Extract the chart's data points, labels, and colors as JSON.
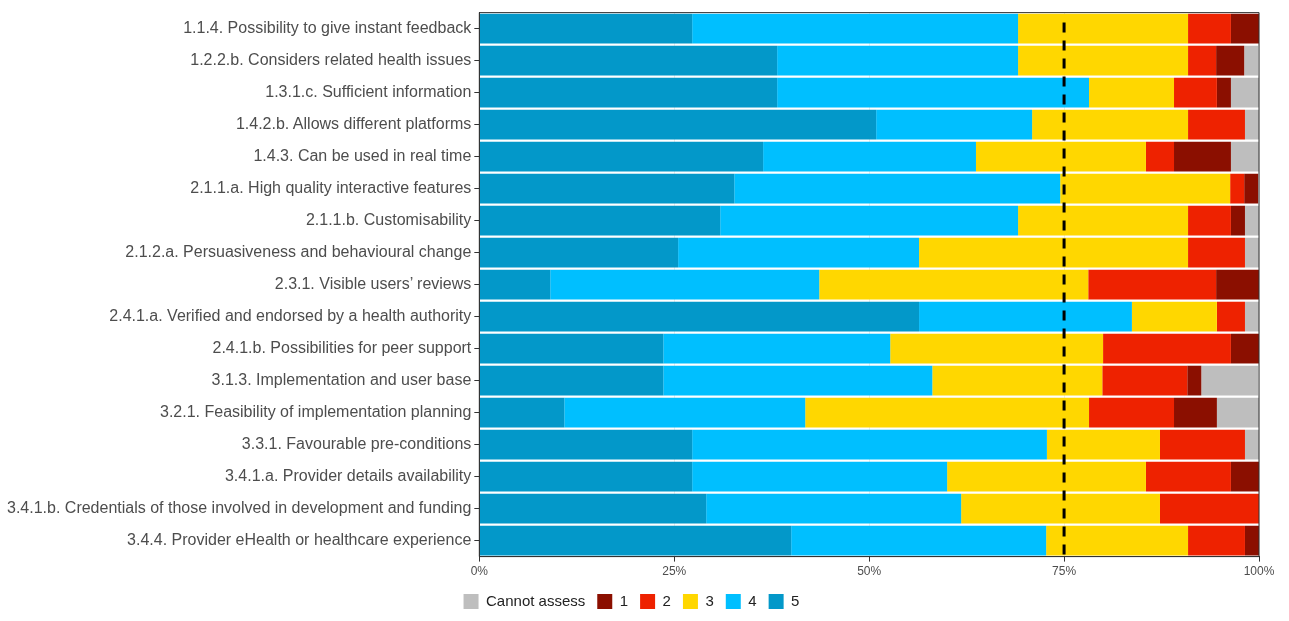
{
  "chart_data": {
    "type": "bar",
    "orientation": "horizontal",
    "stacked": true,
    "categories": [
      "1.1.4. Possibility to give instant feedback",
      "1.2.2.b. Considers related health issues",
      "1.3.1.c. Sufficient information",
      "1.4.2.b. Allows different platforms",
      "1.4.3. Can be used in real time",
      "2.1.1.a. High quality interactive features",
      "2.1.1.b. Customisability",
      "2.1.2.a. Persuasiveness and behavioural change",
      "2.3.1. Visible users’ reviews",
      "2.4.1.a. Verified and endorsed by a health authority",
      "2.4.1.b. Possibilities for peer support",
      "3.1.3. Implementation and user base",
      "3.2.1. Feasibility of implementation planning",
      "3.3.1. Favourable pre-conditions",
      "3.4.1.a. Provider details availability",
      "3.4.1.b. Credentials of those involved in development and funding",
      "3.4.4. Provider eHealth or healthcare experience"
    ],
    "series": [
      {
        "name": "5",
        "color": "#0398c9",
        "values": [
          27.3,
          38.2,
          38.2,
          50.9,
          36.4,
          32.7,
          30.9,
          25.5,
          9.1,
          56.4,
          23.6,
          23.6,
          10.9,
          27.3,
          27.3,
          29.1,
          40.0
        ]
      },
      {
        "name": "4",
        "color": "#00bfff",
        "values": [
          41.8,
          30.9,
          40.0,
          20.0,
          27.3,
          41.8,
          38.2,
          30.9,
          34.5,
          27.3,
          29.1,
          34.5,
          30.9,
          45.5,
          32.7,
          32.7,
          32.7
        ]
      },
      {
        "name": "3",
        "color": "#ffd700",
        "values": [
          21.8,
          21.8,
          10.9,
          20.0,
          21.8,
          21.8,
          21.8,
          34.5,
          34.5,
          10.9,
          27.3,
          21.8,
          36.4,
          14.5,
          25.5,
          25.5,
          18.2
        ]
      },
      {
        "name": "2",
        "color": "#ee2200",
        "values": [
          5.5,
          3.6,
          5.5,
          7.3,
          3.6,
          1.8,
          5.5,
          7.3,
          16.4,
          3.6,
          16.4,
          10.9,
          10.9,
          10.9,
          10.9,
          12.7,
          7.3
        ]
      },
      {
        "name": "1",
        "color": "#8b0f00",
        "values": [
          3.6,
          3.6,
          1.8,
          0,
          7.3,
          1.8,
          1.8,
          0,
          5.5,
          0,
          3.6,
          1.8,
          5.5,
          0,
          3.6,
          0,
          1.8
        ]
      },
      {
        "name": "Cannot assess",
        "color": "#bebebe",
        "values": [
          0,
          1.8,
          3.6,
          1.8,
          3.6,
          0,
          1.8,
          1.8,
          0,
          1.8,
          0,
          7.3,
          5.5,
          1.8,
          0,
          0,
          0
        ]
      }
    ],
    "xlim": [
      0,
      100
    ],
    "xticks": [
      {
        "value": 0,
        "label": "0%"
      },
      {
        "value": 25,
        "label": "25%"
      },
      {
        "value": 50,
        "label": "50%"
      },
      {
        "value": 75,
        "label": "75%"
      },
      {
        "value": 100,
        "label": "100%"
      }
    ],
    "ref_lines": [
      {
        "axis": "x",
        "value": 75,
        "color": "#000000",
        "line_style": "dashed"
      }
    ],
    "grid": true,
    "legend": "bottom"
  }
}
